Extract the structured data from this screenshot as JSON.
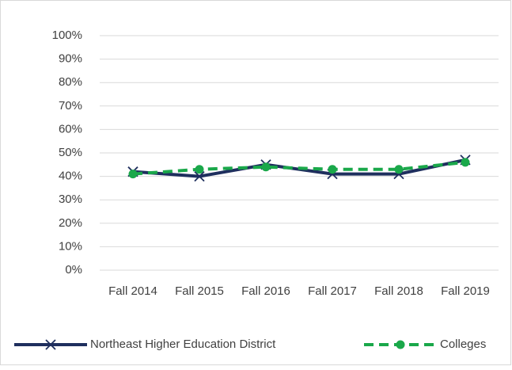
{
  "chart_data": {
    "type": "line",
    "categories": [
      "Fall 2014",
      "Fall 2015",
      "Fall 2016",
      "Fall 2017",
      "Fall 2018",
      "Fall 2019"
    ],
    "series": [
      {
        "name": "Northeast Higher Education District",
        "color": "#1f2f5e",
        "marker": "x",
        "dash": false,
        "values": [
          42,
          40,
          45,
          41,
          41,
          47
        ]
      },
      {
        "name": "Colleges",
        "color": "#1aa84a",
        "marker": "circle",
        "dash": true,
        "values": [
          41,
          43,
          44,
          43,
          43,
          46
        ]
      }
    ],
    "ylim": [
      0,
      100
    ],
    "yticks": [
      {
        "value": 0,
        "label": "0%"
      },
      {
        "value": 10,
        "label": "10%"
      },
      {
        "value": 20,
        "label": "20%"
      },
      {
        "value": 30,
        "label": "30%"
      },
      {
        "value": 40,
        "label": "40%"
      },
      {
        "value": 50,
        "label": "50%"
      },
      {
        "value": 60,
        "label": "60%"
      },
      {
        "value": 70,
        "label": "70%"
      },
      {
        "value": 80,
        "label": "80%"
      },
      {
        "value": 90,
        "label": "90%"
      },
      {
        "value": 100,
        "label": "100%"
      }
    ],
    "grid": true,
    "legend": "bottom"
  }
}
